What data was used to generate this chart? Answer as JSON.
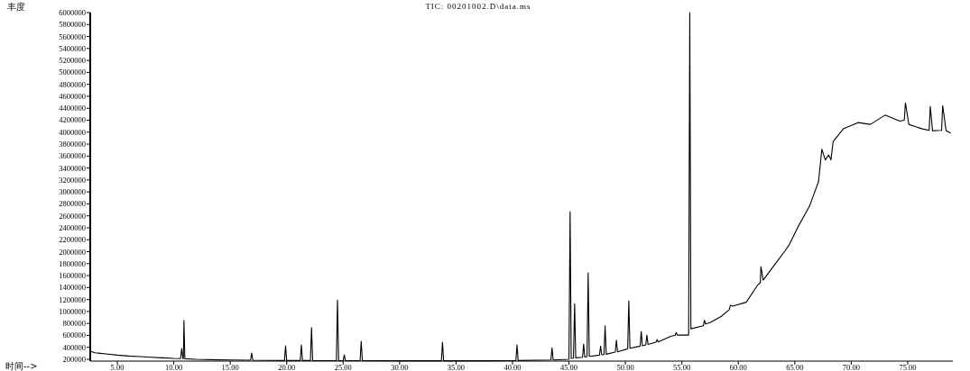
{
  "chart_data": {
    "type": "line",
    "title": "TIC: 00201002.D\\data.ms",
    "xlabel": "时间-->",
    "ylabel": "丰度",
    "xlim": [
      2.6,
      79
    ],
    "ylim": [
      170000,
      6000000
    ],
    "xticks": [
      {
        "value": 5,
        "label": "5.00"
      },
      {
        "value": 10,
        "label": "10.00"
      },
      {
        "value": 15,
        "label": "15.00"
      },
      {
        "value": 20,
        "label": "20.00"
      },
      {
        "value": 25,
        "label": "25.00"
      },
      {
        "value": 30,
        "label": "30.00"
      },
      {
        "value": 35,
        "label": "35.00"
      },
      {
        "value": 40,
        "label": "40.00"
      },
      {
        "value": 45,
        "label": "45.00"
      },
      {
        "value": 50,
        "label": "50.00"
      },
      {
        "value": 55,
        "label": "55.00"
      },
      {
        "value": 60,
        "label": "60.00"
      },
      {
        "value": 65,
        "label": "65.00"
      },
      {
        "value": 70,
        "label": "70.00"
      },
      {
        "value": 75,
        "label": "75.00"
      }
    ],
    "yticks": [
      200000,
      400000,
      600000,
      800000,
      1000000,
      1200000,
      1400000,
      1600000,
      1800000,
      2000000,
      2200000,
      2400000,
      2600000,
      2800000,
      3000000,
      3200000,
      3400000,
      3600000,
      3800000,
      4000000,
      4200000,
      4400000,
      4600000,
      4800000,
      5000000,
      5200000,
      5400000,
      5600000,
      5800000,
      6000000
    ],
    "series": [
      {
        "color": "#000000",
        "x": [
          2.6,
          3.0,
          3.5,
          4.0,
          5.0,
          6.0,
          7.0,
          8.0,
          9.0,
          10.0,
          10.6,
          10.7,
          10.8,
          10.85,
          10.9,
          10.98,
          12.0,
          14.0,
          16.8,
          16.9,
          17.0,
          19.8,
          19.9,
          20.0,
          21.2,
          21.3,
          21.4,
          22.1,
          22.2,
          22.3,
          24.4,
          24.5,
          24.6,
          25.0,
          25.1,
          25.2,
          26.5,
          26.6,
          26.7,
          30.0,
          33.7,
          33.8,
          33.9,
          38.0,
          40.3,
          40.4,
          40.5,
          43.4,
          43.5,
          43.6,
          45.0,
          45.1,
          45.2,
          45.4,
          45.5,
          45.6,
          46.2,
          46.3,
          46.4,
          46.6,
          46.7,
          46.8,
          47.7,
          47.8,
          47.9,
          48.1,
          48.2,
          48.3,
          49.1,
          49.2,
          49.3,
          50.2,
          50.3,
          50.4,
          51.3,
          51.4,
          51.5,
          51.8,
          51.9,
          52.0,
          52.7,
          52.8,
          52.9,
          54.0,
          54.4,
          54.5,
          54.6,
          55.6,
          55.7,
          55.8,
          56.9,
          57.0,
          57.1,
          57.5,
          58.5,
          59.2,
          59.3,
          59.5,
          60.7,
          61.7,
          61.95,
          62.0,
          62.2,
          63.4,
          64.2,
          64.5,
          65.3,
          66.3,
          67.1,
          67.4,
          67.7,
          68.0,
          68.2,
          68.4,
          69.3,
          70.6,
          71.7,
          73.0,
          74.3,
          74.7,
          74.8,
          75.1,
          76.3,
          76.9,
          77.0,
          77.2,
          78.0,
          78.1,
          78.4,
          78.8
        ],
        "values": [
          335000,
          310000,
          300000,
          290000,
          270000,
          255000,
          245000,
          235000,
          225000,
          215000,
          212000,
          380000,
          212000,
          212000,
          850000,
          210000,
          200000,
          190000,
          185000,
          305000,
          185000,
          180000,
          425000,
          180000,
          180000,
          440000,
          180000,
          180000,
          730000,
          180000,
          178000,
          1190000,
          178000,
          178000,
          275000,
          178000,
          178000,
          500000,
          178000,
          175000,
          175000,
          485000,
          175000,
          175000,
          180000,
          440000,
          180000,
          188000,
          390000,
          188000,
          200000,
          2670000,
          215000,
          220000,
          1130000,
          225000,
          235000,
          455000,
          240000,
          245000,
          1645000,
          250000,
          270000,
          420000,
          275000,
          280000,
          760000,
          285000,
          320000,
          520000,
          325000,
          375000,
          1180000,
          385000,
          420000,
          665000,
          425000,
          440000,
          605000,
          450000,
          485000,
          530000,
          490000,
          585000,
          600000,
          650000,
          605000,
          605000,
          6000000,
          710000,
          760000,
          855000,
          790000,
          815000,
          920000,
          1030000,
          1105000,
          1090000,
          1155000,
          1440000,
          1480000,
          1750000,
          1525000,
          1830000,
          2030000,
          2115000,
          2420000,
          2760000,
          3170000,
          3715000,
          3535000,
          3620000,
          3535000,
          3845000,
          4055000,
          4160000,
          4130000,
          4285000,
          4185000,
          4200000,
          4490000,
          4130000,
          4055000,
          4030000,
          4430000,
          4025000,
          4030000,
          4445000,
          4025000,
          3985000
        ]
      }
    ]
  }
}
